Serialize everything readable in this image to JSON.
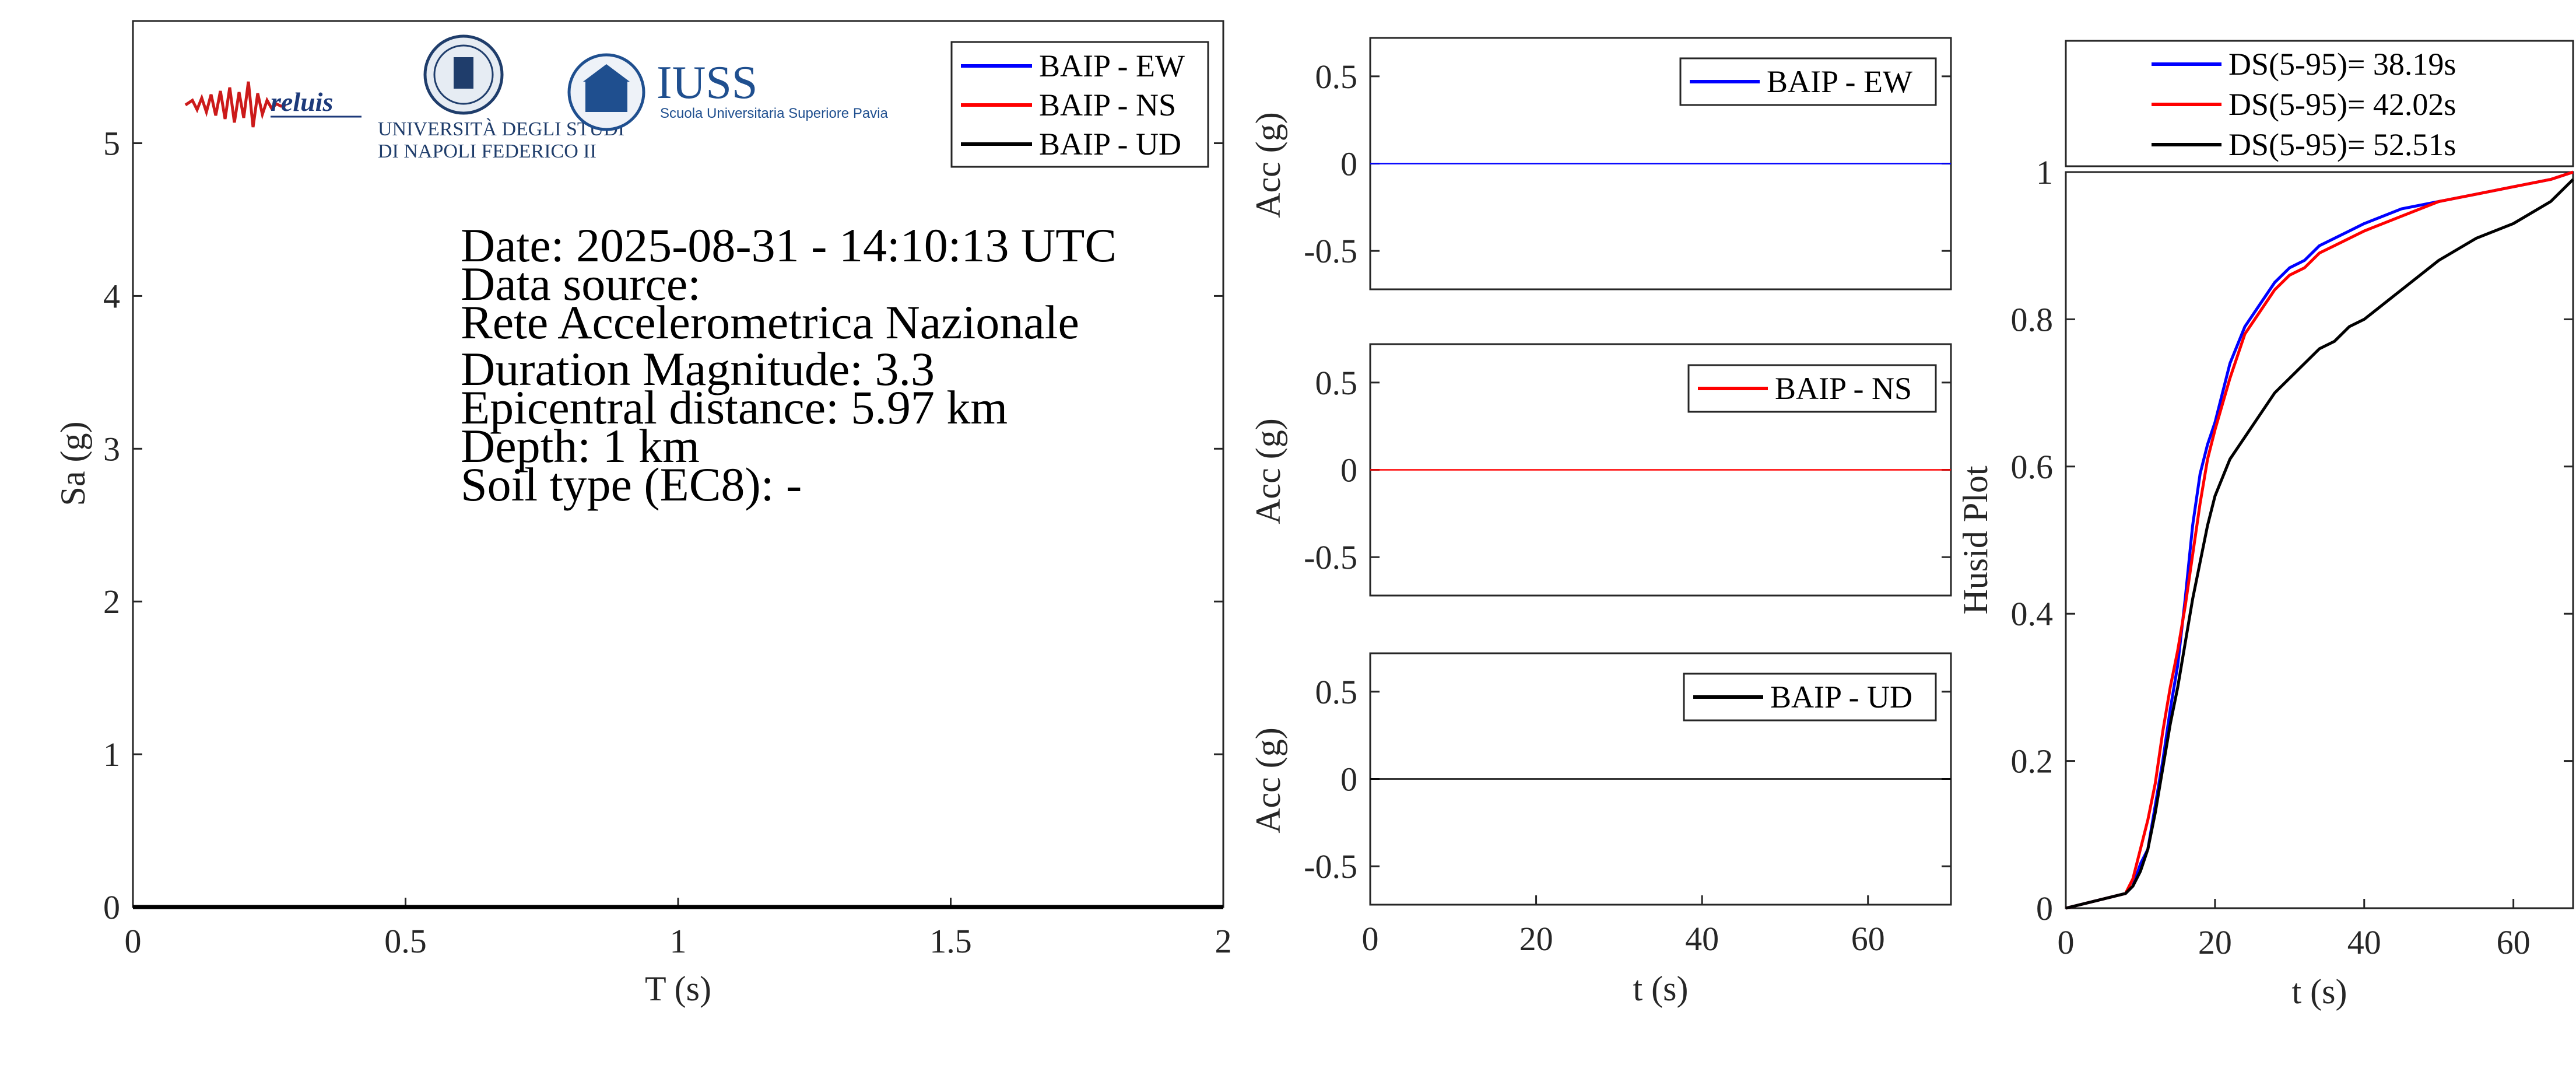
{
  "info": {
    "date": "Date: 2025-08-31 - 14:10:13 UTC",
    "source_label": "Data source:",
    "source": "Rete Accelerometrica Nazionale",
    "magnitude": "Duration Magnitude: 3.3",
    "distance": "Epicentral distance: 5.97 km",
    "depth": "Depth: 1 km",
    "soil": "Soil type (EC8): -"
  },
  "logos": {
    "reluis": "reluis",
    "unina_line1": "UNIVERSITÀ DEGLI STUDI",
    "unina_line2": "DI NAPOLI FEDERICO II",
    "iuss": "IUSS",
    "iuss_sub": "Scuola Universitaria Superiore Pavia"
  },
  "colors": {
    "ew": "#0000ff",
    "ns": "#ff0000",
    "ud": "#000000",
    "axis": "#262626"
  },
  "chart_data": [
    {
      "type": "line",
      "xlabel": "T (s)",
      "ylabel": "Sa (g)",
      "xlim": [
        0,
        2
      ],
      "ylim": [
        0,
        5.8
      ],
      "xticks": [
        0,
        0.5,
        1,
        1.5,
        2
      ],
      "xtick_labels": [
        "0",
        "0.5",
        "1",
        "1.5",
        "2"
      ],
      "yticks": [
        0,
        1,
        2,
        3,
        4,
        5
      ],
      "ytick_labels": [
        "0",
        "1",
        "2",
        "3",
        "4",
        "5"
      ],
      "legend_position": "top-right",
      "series": [
        {
          "name": "BAIP - EW",
          "color": "#0000ff",
          "x": [
            0,
            2
          ],
          "y": [
            0,
            0
          ]
        },
        {
          "name": "BAIP - NS",
          "color": "#ff0000",
          "x": [
            0,
            2
          ],
          "y": [
            0,
            0
          ]
        },
        {
          "name": "BAIP - UD",
          "color": "#000000",
          "x": [
            0,
            2
          ],
          "y": [
            0,
            0
          ]
        }
      ]
    },
    {
      "type": "line",
      "xlabel": "",
      "ylabel": "Acc (g)",
      "xlim": [
        0,
        70
      ],
      "ylim": [
        -0.72,
        0.72
      ],
      "yticks": [
        -0.5,
        0,
        0.5
      ],
      "ytick_labels": [
        "-0.5",
        "0",
        "0.5"
      ],
      "legend_position": "top-right",
      "series": [
        {
          "name": "BAIP - EW",
          "color": "#0000ff",
          "x": [
            0,
            70
          ],
          "y": [
            0,
            0
          ]
        }
      ]
    },
    {
      "type": "line",
      "xlabel": "",
      "ylabel": "Acc (g)",
      "xlim": [
        0,
        70
      ],
      "ylim": [
        -0.72,
        0.72
      ],
      "yticks": [
        -0.5,
        0,
        0.5
      ],
      "ytick_labels": [
        "-0.5",
        "0",
        "0.5"
      ],
      "legend_position": "top-right",
      "series": [
        {
          "name": "BAIP - NS",
          "color": "#ff0000",
          "x": [
            0,
            70
          ],
          "y": [
            0,
            0
          ]
        }
      ]
    },
    {
      "type": "line",
      "xlabel": "t (s)",
      "ylabel": "Acc (g)",
      "xlim": [
        0,
        70
      ],
      "ylim": [
        -0.72,
        0.72
      ],
      "xticks": [
        0,
        20,
        40,
        60
      ],
      "xtick_labels": [
        "0",
        "20",
        "40",
        "60"
      ],
      "yticks": [
        -0.5,
        0,
        0.5
      ],
      "ytick_labels": [
        "-0.5",
        "0",
        "0.5"
      ],
      "legend_position": "top-right",
      "series": [
        {
          "name": "BAIP - UD",
          "color": "#000000",
          "x": [
            0,
            70
          ],
          "y": [
            0,
            0
          ]
        }
      ]
    },
    {
      "type": "line",
      "xlabel": "t (s)",
      "ylabel": "Husid Plot",
      "xlim": [
        0,
        68
      ],
      "ylim": [
        0,
        1
      ],
      "xticks": [
        0,
        20,
        40,
        60
      ],
      "xtick_labels": [
        "0",
        "20",
        "40",
        "60"
      ],
      "yticks": [
        0,
        0.2,
        0.4,
        0.6,
        0.8,
        1
      ],
      "ytick_labels": [
        "0",
        "0.2",
        "0.4",
        "0.6",
        "0.8",
        "1"
      ],
      "legend_position": "outside-top",
      "series": [
        {
          "name": "DS(5-95)= 38.19s",
          "color": "#0000ff",
          "x": [
            0,
            4,
            8,
            9,
            10,
            11,
            12,
            13,
            14,
            15,
            16,
            17,
            18,
            19,
            20,
            22,
            24,
            26,
            28,
            30,
            32,
            34,
            36,
            38,
            40,
            45,
            50,
            55,
            60,
            65,
            68
          ],
          "y": [
            0,
            0.01,
            0.02,
            0.03,
            0.06,
            0.08,
            0.14,
            0.2,
            0.27,
            0.33,
            0.42,
            0.52,
            0.59,
            0.63,
            0.66,
            0.74,
            0.79,
            0.82,
            0.85,
            0.87,
            0.88,
            0.9,
            0.91,
            0.92,
            0.93,
            0.95,
            0.96,
            0.97,
            0.98,
            0.99,
            1.0
          ]
        },
        {
          "name": "DS(5-95)= 42.02s",
          "color": "#ff0000",
          "x": [
            0,
            4,
            8,
            9,
            10,
            11,
            12,
            13,
            14,
            15,
            16,
            17,
            18,
            19,
            20,
            22,
            24,
            26,
            28,
            30,
            32,
            34,
            36,
            38,
            40,
            45,
            50,
            55,
            60,
            65,
            68
          ],
          "y": [
            0,
            0.01,
            0.02,
            0.04,
            0.08,
            0.12,
            0.17,
            0.24,
            0.3,
            0.35,
            0.41,
            0.48,
            0.55,
            0.61,
            0.65,
            0.72,
            0.78,
            0.81,
            0.84,
            0.86,
            0.87,
            0.89,
            0.9,
            0.91,
            0.92,
            0.94,
            0.96,
            0.97,
            0.98,
            0.99,
            1.0
          ]
        },
        {
          "name": "DS(5-95)= 52.51s",
          "color": "#000000",
          "x": [
            0,
            4,
            8,
            9,
            10,
            11,
            12,
            13,
            14,
            15,
            16,
            17,
            18,
            19,
            20,
            22,
            24,
            26,
            28,
            30,
            32,
            34,
            36,
            38,
            40,
            45,
            50,
            55,
            60,
            65,
            68
          ],
          "y": [
            0,
            0.01,
            0.02,
            0.03,
            0.05,
            0.08,
            0.13,
            0.19,
            0.25,
            0.3,
            0.36,
            0.42,
            0.47,
            0.52,
            0.56,
            0.61,
            0.64,
            0.67,
            0.7,
            0.72,
            0.74,
            0.76,
            0.77,
            0.79,
            0.8,
            0.84,
            0.88,
            0.91,
            0.93,
            0.96,
            0.99
          ]
        }
      ]
    }
  ]
}
